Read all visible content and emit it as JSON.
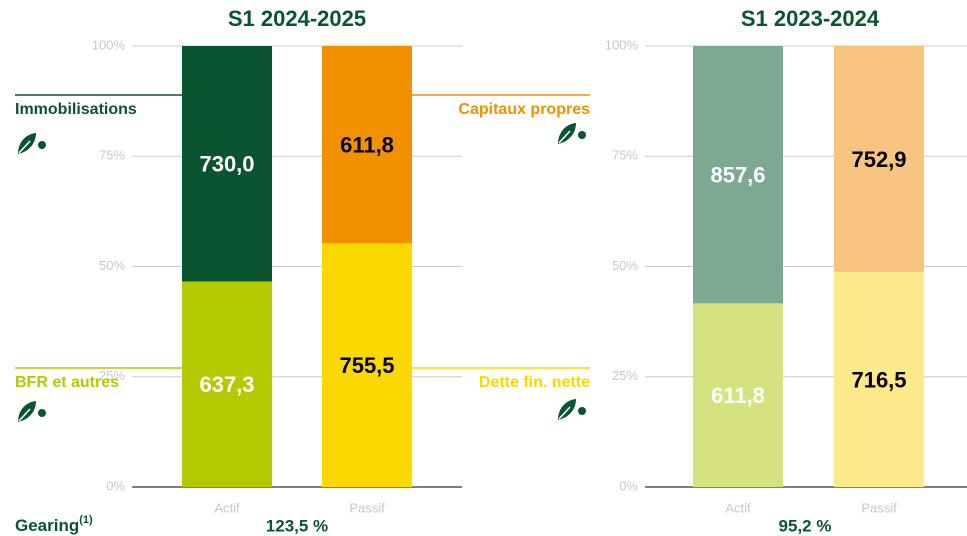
{
  "gearing": {
    "label": "Gearing",
    "note": "(1)"
  },
  "chart_data": [
    {
      "type": "bar",
      "stacked": "percent",
      "title": "S1 2024-2025",
      "annotation": "123,5 %",
      "categories": [
        "Actif",
        "Passif"
      ],
      "ylim": [
        0,
        100
      ],
      "yticks": [
        {
          "value": 0,
          "label": "0%"
        },
        {
          "value": 25,
          "label": "25%"
        },
        {
          "value": 50,
          "label": "50%"
        },
        {
          "value": 75,
          "label": "75%"
        },
        {
          "value": 100,
          "label": "100%"
        }
      ],
      "grid": true,
      "series": [
        {
          "name": "BFR et autres",
          "color": "#b5c900",
          "label_color": "#ffffff",
          "values": [
            637.3,
            null
          ],
          "value_labels": [
            "637,3",
            null
          ]
        },
        {
          "name": "Immobilisations",
          "color": "#0b5430",
          "label_color": "#ffffff",
          "values": [
            730.0,
            null
          ],
          "value_labels": [
            "730,0",
            null
          ]
        },
        {
          "name": "Dette fin. nette",
          "color": "#fcd800",
          "label_color": "#000000",
          "values": [
            null,
            755.5
          ],
          "value_labels": [
            null,
            "755,5"
          ]
        },
        {
          "name": "Capitaux propres",
          "color": "#f29100",
          "label_color": "#000000",
          "values": [
            null,
            611.8
          ],
          "value_labels": [
            null,
            "611,8"
          ]
        }
      ]
    },
    {
      "type": "bar",
      "stacked": "percent",
      "title": "S1 2023-2024",
      "annotation": "95,2 %",
      "categories": [
        "Actif",
        "Passif"
      ],
      "ylim": [
        0,
        100
      ],
      "yticks": [
        {
          "value": 0,
          "label": "0%"
        },
        {
          "value": 25,
          "label": "25%"
        },
        {
          "value": 50,
          "label": "50%"
        },
        {
          "value": 75,
          "label": "75%"
        },
        {
          "value": 100,
          "label": "100%"
        }
      ],
      "grid": true,
      "series": [
        {
          "color": "#d5e27f",
          "label_color": "#ffffff",
          "values": [
            611.8,
            null
          ],
          "value_labels": [
            "611,8",
            null
          ]
        },
        {
          "color": "#7da891",
          "label_color": "#ffffff",
          "values": [
            857.6,
            null
          ],
          "value_labels": [
            "857,6",
            null
          ]
        },
        {
          "color": "#fde98a",
          "label_color": "#000000",
          "values": [
            null,
            716.5
          ],
          "value_labels": [
            null,
            "716,5"
          ]
        },
        {
          "color": "#f7c57f",
          "label_color": "#000000",
          "values": [
            null,
            752.9
          ],
          "value_labels": [
            null,
            "752,9"
          ]
        }
      ]
    }
  ]
}
